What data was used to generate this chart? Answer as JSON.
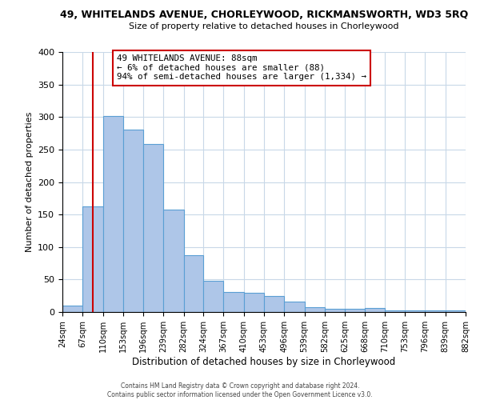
{
  "title": "49, WHITELANDS AVENUE, CHORLEYWOOD, RICKMANSWORTH, WD3 5RQ",
  "subtitle": "Size of property relative to detached houses in Chorleywood",
  "xlabel": "Distribution of detached houses by size in Chorleywood",
  "ylabel": "Number of detached properties",
  "bar_edges": [
    24,
    67,
    110,
    153,
    196,
    239,
    282,
    324,
    367,
    410,
    453,
    496,
    539,
    582,
    625,
    668,
    710,
    753,
    796,
    839,
    882
  ],
  "bar_heights": [
    10,
    163,
    302,
    281,
    258,
    157,
    88,
    48,
    31,
    29,
    25,
    16,
    8,
    5,
    5,
    6,
    3,
    2,
    2,
    2
  ],
  "bar_color": "#aec6e8",
  "bar_edge_color": "#5a9fd4",
  "red_line_x": 88,
  "red_line_color": "#cc0000",
  "annotation_box_text": "49 WHITELANDS AVENUE: 88sqm\n← 6% of detached houses are smaller (88)\n94% of semi-detached houses are larger (1,334) →",
  "ylim": [
    0,
    400
  ],
  "yticks": [
    0,
    50,
    100,
    150,
    200,
    250,
    300,
    350,
    400
  ],
  "tick_labels": [
    "24sqm",
    "67sqm",
    "110sqm",
    "153sqm",
    "196sqm",
    "239sqm",
    "282sqm",
    "324sqm",
    "367sqm",
    "410sqm",
    "453sqm",
    "496sqm",
    "539sqm",
    "582sqm",
    "625sqm",
    "668sqm",
    "710sqm",
    "753sqm",
    "796sqm",
    "839sqm",
    "882sqm"
  ],
  "footer_line1": "Contains HM Land Registry data © Crown copyright and database right 2024.",
  "footer_line2": "Contains public sector information licensed under the Open Government Licence v3.0.",
  "background_color": "#ffffff",
  "grid_color": "#c8d8e8"
}
